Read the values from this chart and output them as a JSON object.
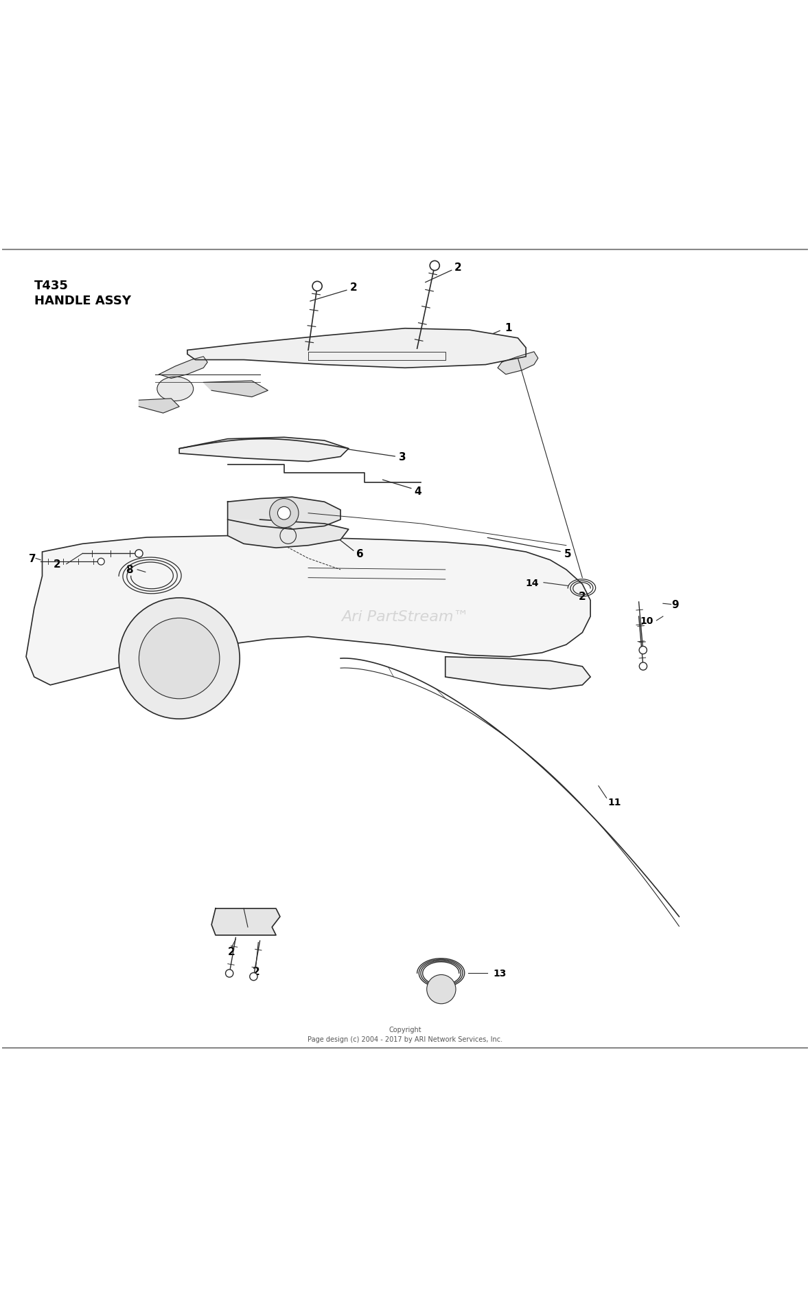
{
  "title": "T435\nHANDLE ASSY",
  "background_color": "#ffffff",
  "line_color": "#2a2a2a",
  "text_color": "#000000",
  "copyright_text": "Copyright\nPage design (c) 2004 - 2017 by ARI Network Services, Inc.",
  "watermark_text": "Ari PartStream™",
  "figsize": [
    11.8,
    18.9
  ],
  "dpi": 100
}
